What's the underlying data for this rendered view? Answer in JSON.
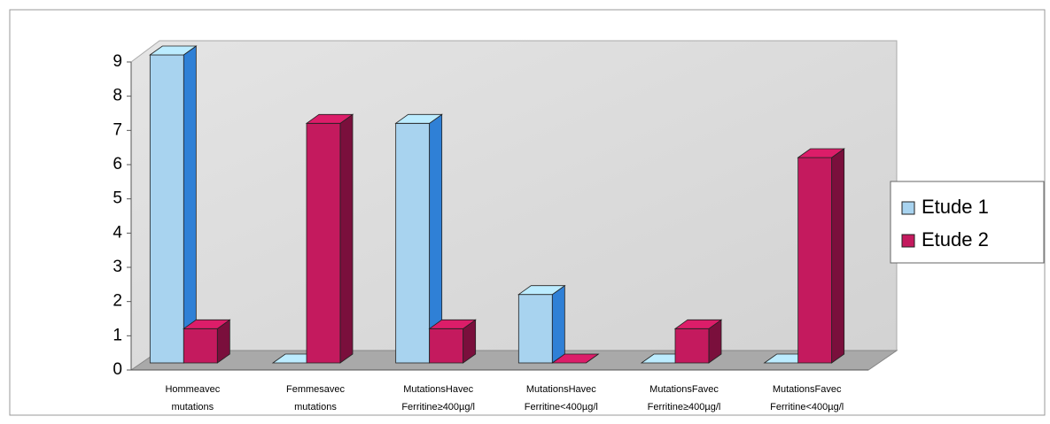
{
  "chart_data": {
    "type": "bar3d",
    "categories": [
      [
        "Hommeavec",
        "mutations"
      ],
      [
        "Femmesavec",
        "mutations"
      ],
      [
        "MutationsHavec",
        "Ferritine≥400µg/l"
      ],
      [
        "MutationsHavec",
        "Ferritine<400µg/l"
      ],
      [
        "MutationsFavec",
        "Ferritine≥400µg/l"
      ],
      [
        "MutationsFavec",
        "Ferritine<400µg/l"
      ]
    ],
    "series": [
      {
        "name": "Etude 1",
        "color": "#a8d3ef",
        "values": [
          9,
          0,
          7,
          2,
          0,
          0
        ]
      },
      {
        "name": "Etude 2",
        "color": "#c41a5e",
        "values": [
          1,
          7,
          1,
          0,
          1,
          6
        ]
      }
    ],
    "ylim": [
      0,
      9
    ],
    "yticks": [
      0,
      1,
      2,
      3,
      4,
      5,
      6,
      7,
      8,
      9
    ],
    "legend": "right"
  }
}
